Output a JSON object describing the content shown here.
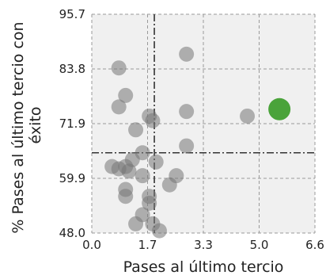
{
  "chart_data": {
    "type": "scatter",
    "xlabel": "Pases al último tercio",
    "ylabel_lines": [
      "% Pases al último tercio con",
      "éxito"
    ],
    "xlim": [
      0.0,
      6.6
    ],
    "ylim": [
      48.0,
      95.7
    ],
    "x_ticks": [
      "0.0",
      "1.7",
      "3.3",
      "5.0",
      "6.6"
    ],
    "y_ticks": [
      "48.0",
      "59.9",
      "71.9",
      "83.8",
      "95.7"
    ],
    "grid": true,
    "reference_lines": {
      "x": 1.85,
      "y": 65.5
    },
    "colors": {
      "point": "#777777",
      "highlight": "#4aa33a",
      "panel": "#f0f0f0"
    },
    "points": [
      {
        "x": 0.8,
        "y": 84.0
      },
      {
        "x": 2.8,
        "y": 87.0
      },
      {
        "x": 1.0,
        "y": 78.0
      },
      {
        "x": 0.8,
        "y": 75.5
      },
      {
        "x": 1.7,
        "y": 73.5
      },
      {
        "x": 1.8,
        "y": 72.5
      },
      {
        "x": 2.8,
        "y": 74.5
      },
      {
        "x": 4.6,
        "y": 73.5
      },
      {
        "x": 1.3,
        "y": 70.5
      },
      {
        "x": 2.8,
        "y": 67.0
      },
      {
        "x": 1.5,
        "y": 65.5
      },
      {
        "x": 1.2,
        "y": 64.0
      },
      {
        "x": 1.9,
        "y": 63.5
      },
      {
        "x": 0.6,
        "y": 62.5
      },
      {
        "x": 0.8,
        "y": 62.0
      },
      {
        "x": 1.0,
        "y": 62.5
      },
      {
        "x": 1.1,
        "y": 61.5
      },
      {
        "x": 1.5,
        "y": 60.5
      },
      {
        "x": 2.5,
        "y": 60.5
      },
      {
        "x": 2.3,
        "y": 58.5
      },
      {
        "x": 1.0,
        "y": 57.5
      },
      {
        "x": 1.0,
        "y": 56.0
      },
      {
        "x": 1.7,
        "y": 56.0
      },
      {
        "x": 1.7,
        "y": 54.5
      },
      {
        "x": 1.5,
        "y": 52.0
      },
      {
        "x": 1.3,
        "y": 50.0
      },
      {
        "x": 1.8,
        "y": 50.0
      },
      {
        "x": 2.0,
        "y": 48.5
      }
    ],
    "highlight": {
      "x": 5.55,
      "y": 75.0
    }
  }
}
